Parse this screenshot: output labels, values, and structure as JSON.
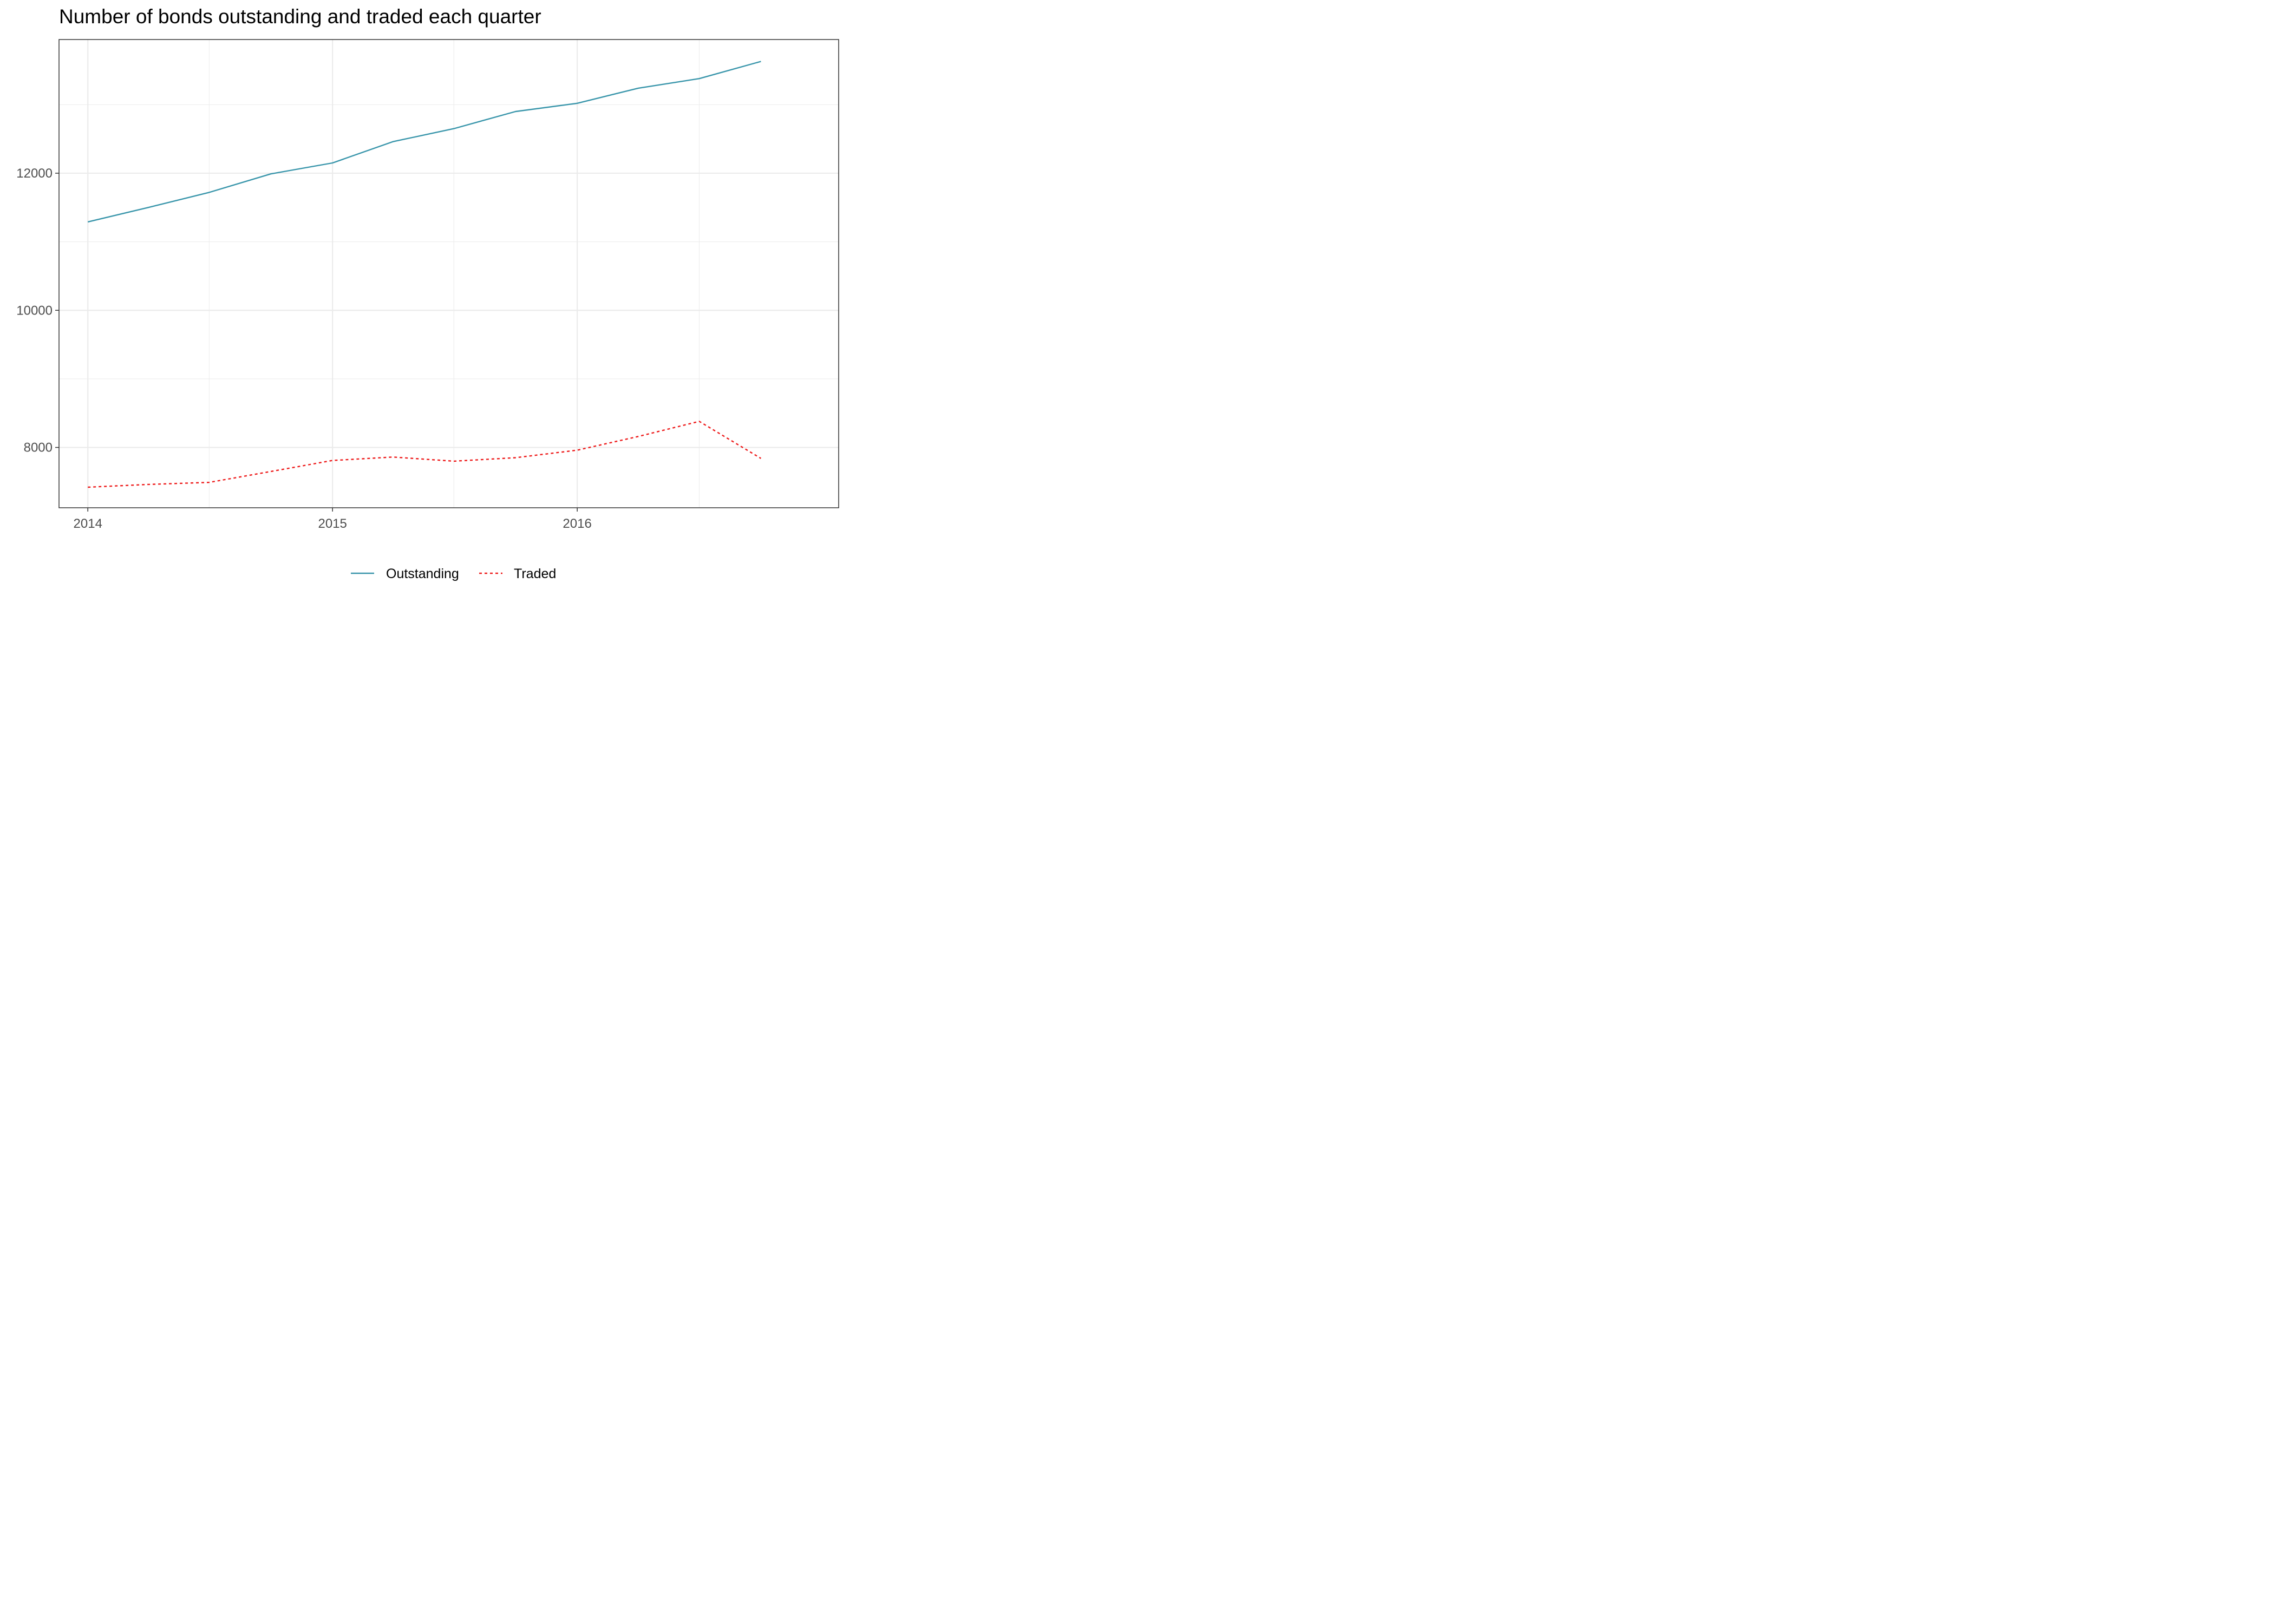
{
  "chart_data": {
    "type": "line",
    "title": "Number of bonds outstanding and traded each quarter",
    "xlabel": "",
    "ylabel": "",
    "x": [
      "2014-01-01",
      "2014-04-01",
      "2014-07-01",
      "2014-10-01",
      "2015-01-01",
      "2015-04-01",
      "2015-07-01",
      "2015-10-01",
      "2016-01-01",
      "2016-04-01",
      "2016-07-01",
      "2016-10-01"
    ],
    "x_ticks": [
      "2014",
      "2015",
      "2016"
    ],
    "y_ticks": [
      8000,
      10000,
      12000
    ],
    "xlim": [
      "2013-11-19",
      "2017-01-25"
    ],
    "ylim": [
      7120,
      13950
    ],
    "grid": true,
    "legend_position": "bottom",
    "series": [
      {
        "name": "Outstanding",
        "color": "#3a96ab",
        "line_style": "solid",
        "values": [
          11290,
          11500,
          11720,
          11990,
          12150,
          12460,
          12650,
          12900,
          13020,
          13240,
          13380,
          13630
        ]
      },
      {
        "name": "Traded",
        "color": "#ee1c1c",
        "line_style": "dotted",
        "values": [
          7420,
          7460,
          7490,
          7650,
          7810,
          7860,
          7800,
          7850,
          7960,
          8160,
          8380,
          7840
        ]
      }
    ]
  }
}
